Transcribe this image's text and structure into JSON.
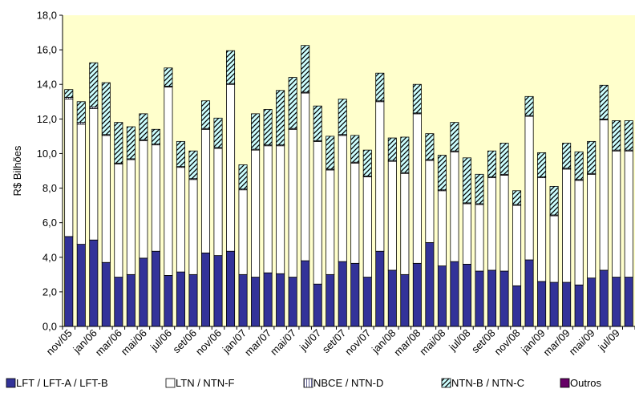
{
  "chart_data": {
    "type": "bar",
    "stacked": true,
    "ylabel": "R$ Bilhões",
    "ylim": [
      0,
      18
    ],
    "yticks": [
      "0,0",
      "2,0",
      "4,0",
      "6,0",
      "8,0",
      "10,0",
      "12,0",
      "14,0",
      "16,0",
      "18,0"
    ],
    "grid": false,
    "legend_position": "bottom",
    "plot_background": "#FFFFCC",
    "categories": [
      "nov/05",
      "dez/05",
      "jan/06",
      "fev/06",
      "mar/06",
      "abr/06",
      "mai/06",
      "jun/06",
      "jul/06",
      "ago/06",
      "set/06",
      "out/06",
      "nov/06",
      "dez/06",
      "jan/07",
      "fev/07",
      "mar/07",
      "abr/07",
      "mai/07",
      "jun/07",
      "jul/07",
      "ago/07",
      "set/07",
      "out/07",
      "nov/07",
      "dez/07",
      "jan/08",
      "fev/08",
      "mar/08",
      "abr/08",
      "mai/08",
      "jun/08",
      "jul/08",
      "ago/08",
      "set/08",
      "out/08",
      "nov/08",
      "dez/08",
      "jan/09",
      "fev/09",
      "mar/09",
      "abr/09",
      "mai/09",
      "jun/09",
      "jul/09",
      "ago/09"
    ],
    "x_tick_labels": [
      "nov/05",
      "jan/06",
      "mar/06",
      "mai/06",
      "jul/06",
      "set/06",
      "nov/06",
      "jan/07",
      "mar/07",
      "mai/07",
      "jul/07",
      "set/07",
      "nov/07",
      "jan/08",
      "mar/08",
      "mai/08",
      "jul/08",
      "set/08",
      "nov/08",
      "jan/09",
      "mar/09",
      "mai/09",
      "jul/09"
    ],
    "series": [
      {
        "name": "LFT / LFT-A / LFT-B",
        "color": "#333399",
        "pattern": "solid",
        "values": [
          5.2,
          4.75,
          5.0,
          3.7,
          2.85,
          3.0,
          3.95,
          4.35,
          2.95,
          3.15,
          3.0,
          4.25,
          4.1,
          4.35,
          3.0,
          2.85,
          3.1,
          3.05,
          2.85,
          3.8,
          2.45,
          3.0,
          3.75,
          3.65,
          2.85,
          4.35,
          3.25,
          3.0,
          3.65,
          4.85,
          3.5,
          3.75,
          3.6,
          3.2,
          3.25,
          3.2,
          2.35,
          3.85,
          2.6,
          2.55,
          2.55,
          2.4,
          2.8,
          3.25,
          2.85,
          2.85
        ]
      },
      {
        "name": "LTN / NTN-F",
        "color": "#FFFFFF",
        "pattern": "solid",
        "values": [
          7.95,
          6.95,
          7.6,
          7.35,
          6.55,
          6.65,
          6.8,
          6.15,
          10.9,
          6.05,
          5.5,
          7.15,
          6.2,
          9.65,
          4.9,
          7.35,
          7.35,
          7.4,
          8.55,
          9.7,
          8.25,
          6.05,
          7.3,
          5.8,
          5.8,
          8.65,
          6.3,
          5.85,
          8.65,
          4.75,
          4.35,
          6.35,
          3.5,
          3.85,
          5.35,
          5.55,
          4.65,
          8.3,
          6.0,
          3.85,
          6.55,
          6.05,
          6.0,
          8.7,
          7.3,
          7.3
        ]
      },
      {
        "name": "NBCE / NTN-D",
        "color": "#9999CC",
        "pattern": "vertical-lines",
        "values": [
          0.1,
          0.1,
          0.1,
          0.05,
          0.05,
          0.05,
          0.05,
          0.05,
          0.05,
          0.05,
          0.05,
          0.05,
          0.05,
          0.05,
          0.05,
          0.05,
          0.05,
          0.05,
          0.05,
          0.05,
          0.05,
          0.05,
          0.05,
          0.05,
          0.05,
          0.05,
          0.05,
          0.05,
          0.05,
          0.05,
          0.05,
          0.05,
          0.05,
          0.05,
          0.05,
          0.05,
          0.05,
          0.05,
          0.05,
          0.05,
          0.05,
          0.05,
          0.05,
          0.05,
          0.05,
          0.05
        ]
      },
      {
        "name": "NTN-B / NTN-C",
        "color": "#CCFFFF",
        "pattern": "diagonal-hatch",
        "values": [
          0.45,
          1.2,
          2.55,
          3.0,
          2.35,
          1.85,
          1.5,
          0.85,
          1.05,
          1.45,
          1.6,
          1.6,
          1.7,
          1.9,
          1.4,
          2.05,
          2.05,
          3.15,
          2.95,
          2.7,
          2.0,
          1.9,
          2.05,
          1.55,
          1.5,
          1.6,
          1.3,
          2.05,
          1.65,
          1.5,
          2.0,
          1.65,
          2.6,
          1.7,
          1.5,
          1.8,
          0.8,
          1.1,
          1.4,
          1.65,
          1.45,
          1.6,
          1.85,
          1.95,
          1.7,
          1.7
        ]
      },
      {
        "name": "Outros",
        "color": "#660066",
        "pattern": "solid",
        "values": [
          0,
          0,
          0,
          0,
          0,
          0,
          0,
          0,
          0,
          0,
          0,
          0,
          0,
          0,
          0,
          0,
          0,
          0,
          0,
          0,
          0,
          0,
          0,
          0,
          0,
          0,
          0,
          0,
          0,
          0,
          0,
          0,
          0,
          0,
          0,
          0,
          0,
          0,
          0,
          0,
          0,
          0,
          0,
          0,
          0,
          0
        ]
      }
    ]
  }
}
